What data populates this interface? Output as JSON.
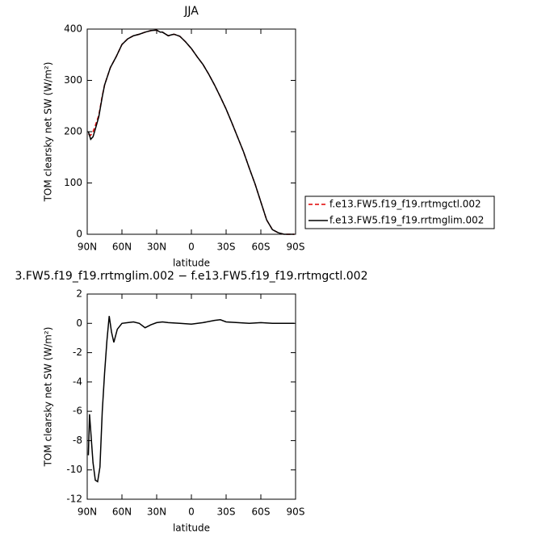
{
  "chart_data": [
    {
      "type": "line",
      "title": "JJA",
      "x_label": "latitude",
      "y_label": "TOM clearsky net SW (W/m²)",
      "xlim": [
        90,
        -90
      ],
      "xticks": [
        {
          "value": 90,
          "label": "90N"
        },
        {
          "value": 60,
          "label": "60N"
        },
        {
          "value": 30,
          "label": "30N"
        },
        {
          "value": 0,
          "label": "0"
        },
        {
          "value": -30,
          "label": "30S"
        },
        {
          "value": -60,
          "label": "60S"
        },
        {
          "value": -90,
          "label": "90S"
        }
      ],
      "ylim": [
        0,
        400
      ],
      "yticks": [
        0,
        100,
        200,
        300,
        400
      ],
      "legend": "right",
      "x": [
        89,
        87,
        85,
        83,
        80,
        77,
        75,
        70,
        65,
        60,
        55,
        50,
        45,
        40,
        35,
        30,
        27,
        25,
        20,
        17,
        15,
        10,
        5,
        0,
        -5,
        -10,
        -15,
        -20,
        -25,
        -30,
        -35,
        -40,
        -45,
        -50,
        -55,
        -60,
        -65,
        -70,
        -75,
        -80,
        -85,
        -89
      ],
      "series": [
        {
          "name": "f.e13.FW5.f19_f19.rrtmgctl.002",
          "color": "#e00000",
          "line_style": "dashed",
          "values": [
            195,
            193,
            200,
            212,
            232,
            270,
            291,
            325,
            346,
            370,
            381,
            387,
            390,
            394,
            397,
            398,
            394,
            394,
            387,
            389,
            390,
            386,
            375,
            362,
            346,
            331,
            312,
            291,
            268,
            244,
            217,
            189,
            161,
            129,
            98,
            63,
            28,
            9,
            3,
            0,
            0,
            0
          ]
        },
        {
          "name": "f.e13.FW5.f19_f19.rrtmglim.002",
          "color": "#000000",
          "line_style": "solid",
          "values": [
            200,
            185,
            190,
            205,
            229,
            268,
            291,
            325,
            346,
            370,
            381,
            387,
            390,
            394,
            397,
            398,
            394,
            394,
            387,
            389,
            390,
            386,
            375,
            362,
            346,
            331,
            312,
            291,
            268,
            244,
            217,
            189,
            161,
            129,
            98,
            63,
            28,
            9,
            3,
            0,
            0,
            0
          ]
        }
      ]
    },
    {
      "type": "line",
      "title": "3.FW5.f19_f19.rrtmglim.002 − f.e13.FW5.f19_f19.rrtmgctl.002",
      "x_label": "latitude",
      "y_label": "TOM clearsky net SW (W/m²)",
      "xlim": [
        90,
        -90
      ],
      "xticks": [
        {
          "value": 90,
          "label": "90N"
        },
        {
          "value": 60,
          "label": "60N"
        },
        {
          "value": 30,
          "label": "30N"
        },
        {
          "value": 0,
          "label": "0"
        },
        {
          "value": -30,
          "label": "30S"
        },
        {
          "value": -60,
          "label": "60S"
        },
        {
          "value": -90,
          "label": "90S"
        }
      ],
      "ylim": [
        -12,
        2
      ],
      "yticks": [
        -12,
        -10,
        -8,
        -6,
        -4,
        -2,
        0,
        2
      ],
      "x": [
        89,
        88,
        85,
        83,
        81,
        79,
        77,
        75,
        73,
        71,
        69,
        67,
        64,
        60,
        55,
        50,
        45,
        40,
        35,
        30,
        25,
        20,
        10,
        0,
        -10,
        -20,
        -25,
        -30,
        -40,
        -50,
        -60,
        -70,
        -80,
        -89
      ],
      "series": [
        {
          "color": "#000000",
          "line_style": "solid",
          "values": [
            -9,
            -6.2,
            -9.5,
            -10.7,
            -10.8,
            -9.8,
            -6,
            -3.4,
            -1.2,
            0.5,
            -0.6,
            -1.3,
            -0.4,
            0,
            0.05,
            0.1,
            0,
            -0.3,
            -0.1,
            0.05,
            0.1,
            0.05,
            0,
            -0.05,
            0.05,
            0.2,
            0.25,
            0.1,
            0.05,
            0,
            0.05,
            0,
            0,
            0
          ]
        }
      ]
    }
  ]
}
